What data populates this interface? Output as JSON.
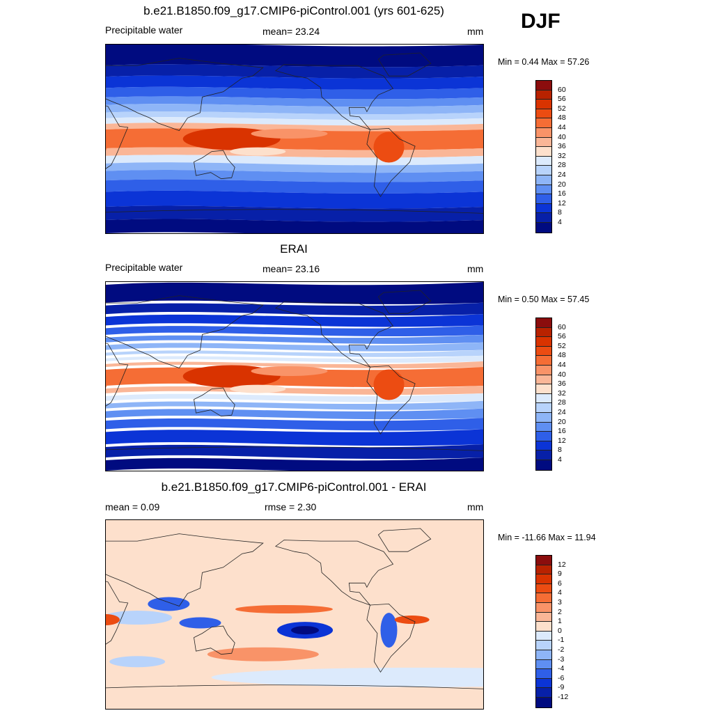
{
  "season": "DJF",
  "units": "mm",
  "panels": [
    {
      "title": "b.e21.B1850.f09_g17.CMIP6-piControl.001 (yrs 601-625)",
      "left_label": "Precipitable water",
      "center_label": "mean=  23.24",
      "right_label": "mm",
      "minmax": "Min =   0.44 Max =  57.26"
    },
    {
      "title": "ERAI",
      "left_label": "Precipitable water",
      "center_label": "mean=  23.16",
      "right_label": "mm",
      "minmax": "Min =   0.50 Max =  57.45"
    },
    {
      "title": "b.e21.B1850.f09_g17.CMIP6-piControl.001 - ERAI",
      "left_label": "mean =   0.09",
      "center_label": "rmse =   2.30",
      "right_label": "mm",
      "minmax": "Min = -11.66 Max =  11.94"
    }
  ],
  "colorbars": {
    "absolute": {
      "labels": [
        "60",
        "56",
        "52",
        "48",
        "44",
        "40",
        "36",
        "32",
        "28",
        "24",
        "20",
        "16",
        "12",
        "8",
        "4"
      ],
      "colors": [
        "#8b0d0d",
        "#b82200",
        "#d93300",
        "#ec4c12",
        "#f56d35",
        "#f99368",
        "#fab697",
        "#fde0cc",
        "#dceafc",
        "#b8d3fb",
        "#8eb5f7",
        "#5f8ff2",
        "#2f5fe8",
        "#0b34d6",
        "#0720a8",
        "#000b80"
      ]
    },
    "difference": {
      "labels": [
        "12",
        "9",
        "6",
        "4",
        "3",
        "2",
        "1",
        "0",
        "-1",
        "-2",
        "-3",
        "-4",
        "-6",
        "-9",
        "-12"
      ],
      "colors": [
        "#8b0d0d",
        "#b82200",
        "#d93300",
        "#ec4c12",
        "#f56d35",
        "#f99368",
        "#fab697",
        "#fde0cc",
        "#dceafc",
        "#b8d3fb",
        "#8eb5f7",
        "#5f8ff2",
        "#2f5fe8",
        "#0b34d6",
        "#0720a8",
        "#000b80"
      ]
    }
  }
}
